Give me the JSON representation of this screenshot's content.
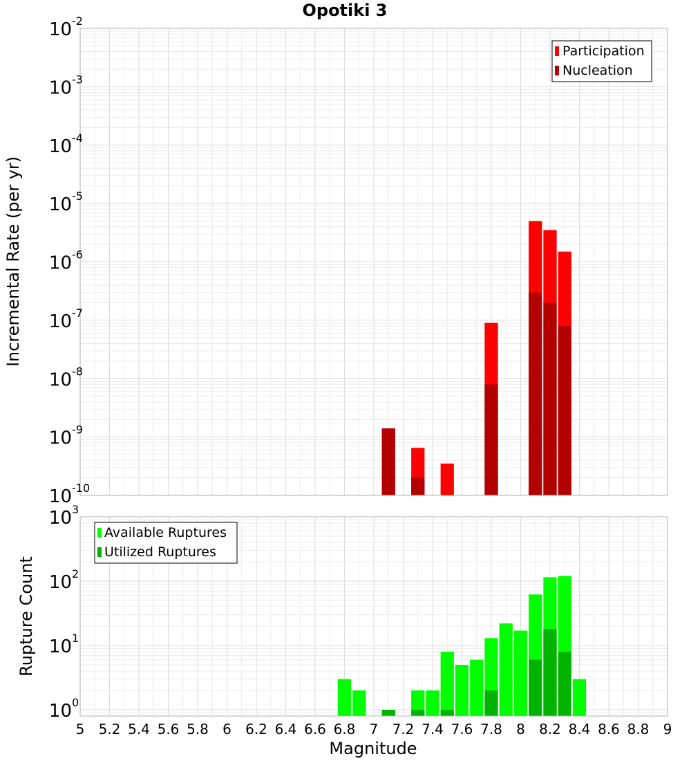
{
  "title": "Opotiki 3",
  "xlabel": "Magnitude",
  "colors": {
    "participation": "#ff0000",
    "nucleation": "#b30000",
    "available": "#00ff00",
    "utilized": "#00b300"
  },
  "chart_data": [
    {
      "type": "bar",
      "title": "Opotiki 3",
      "ylabel": "Incremental Rate (per yr)",
      "yscale": "log",
      "ylim": [
        1e-10,
        0.01
      ],
      "xlim": [
        5,
        9
      ],
      "ytick_exponents": [
        "-2",
        "-3",
        "-4",
        "-5",
        "-6",
        "-7",
        "-8",
        "-9",
        "-10"
      ],
      "legend": [
        "Participation",
        "Nucleation"
      ],
      "legend_position": "top-right",
      "grid": true,
      "series": [
        {
          "name": "Participation",
          "color": "#ff0000",
          "x": [
            7.1,
            7.3,
            7.5,
            7.8,
            8.1,
            8.2,
            8.3
          ],
          "values": [
            1.4e-09,
            6.5e-10,
            3.5e-10,
            9e-08,
            5e-06,
            3.5e-06,
            1.5e-06
          ]
        },
        {
          "name": "Nucleation",
          "color": "#b30000",
          "x": [
            7.1,
            7.3,
            7.8,
            8.1,
            8.2,
            8.3
          ],
          "values": [
            1.4e-09,
            2e-10,
            8e-09,
            3e-07,
            2e-07,
            8e-08
          ]
        }
      ]
    },
    {
      "type": "bar",
      "title": "",
      "ylabel": "Rupture Count",
      "xlabel": "Magnitude",
      "yscale": "log",
      "ylim": [
        0.8,
        1000
      ],
      "xlim": [
        5,
        9
      ],
      "ytick_exponents": [
        "3",
        "2",
        "1",
        "0"
      ],
      "legend": [
        "Available Ruptures",
        "Utilized Ruptures"
      ],
      "legend_position": "top-left",
      "grid": true,
      "series": [
        {
          "name": "Available Ruptures",
          "color": "#00ff00",
          "x": [
            6.8,
            6.9,
            7.1,
            7.3,
            7.4,
            7.5,
            7.6,
            7.7,
            7.8,
            7.9,
            8.0,
            8.1,
            8.2,
            8.3,
            8.4
          ],
          "values": [
            3,
            2,
            1,
            2,
            2,
            8,
            5,
            6,
            13,
            22,
            17,
            62,
            115,
            120,
            3
          ]
        },
        {
          "name": "Utilized Ruptures",
          "color": "#00b300",
          "x": [
            7.1,
            7.3,
            7.5,
            7.8,
            8.1,
            8.2,
            8.3
          ],
          "values": [
            1,
            1,
            1,
            2,
            6,
            18,
            8
          ]
        }
      ]
    }
  ],
  "xticks": [
    "5",
    "5.2",
    "5.4",
    "5.6",
    "5.8",
    "6",
    "6.2",
    "6.4",
    "6.6",
    "6.8",
    "7",
    "7.2",
    "7.4",
    "7.6",
    "7.8",
    "8",
    "8.2",
    "8.4",
    "8.6",
    "8.8",
    "9"
  ]
}
